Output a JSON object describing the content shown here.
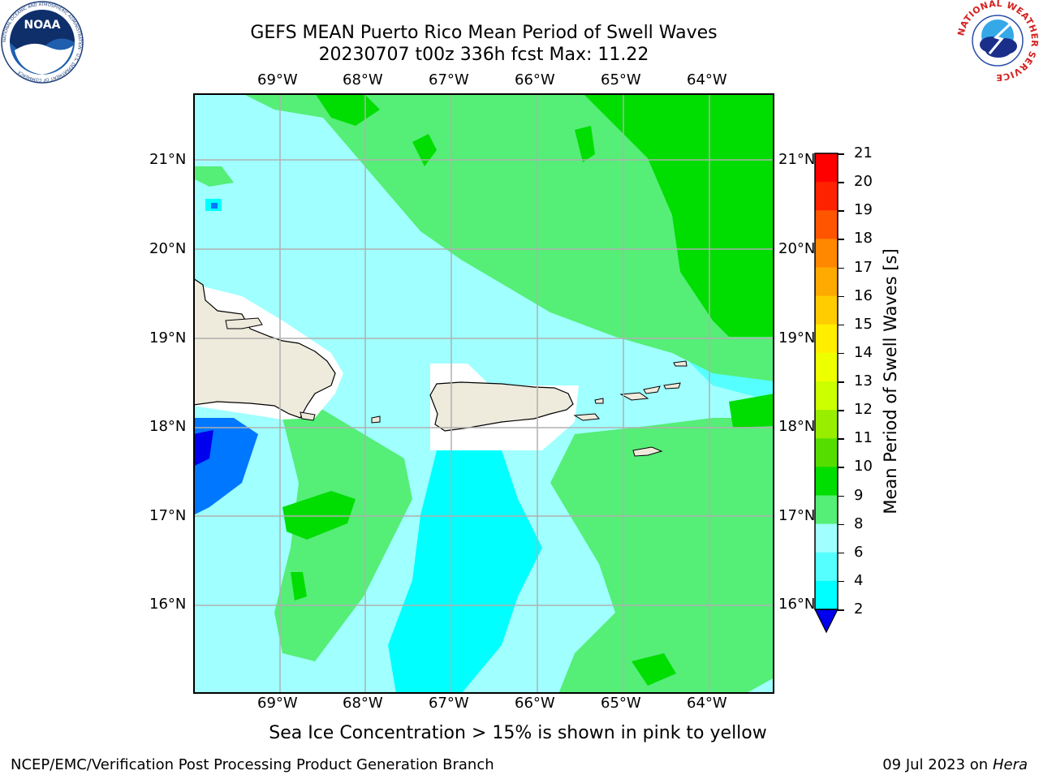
{
  "header": {
    "title_line1": "GEFS MEAN Puerto Rico Mean Period of Swell Waves",
    "title_line2": "20230707 t00z 336h fcst   Max: 11.22"
  },
  "logos": {
    "noaa_text": "NOAA",
    "noaa_ring_text": "NATIONAL OCEANIC AND ATMOSPHERIC ADMINISTRATION · U.S. DEPARTMENT OF COMMERCE",
    "nws_ring_text": "NATIONAL WEATHER SERVICE"
  },
  "map": {
    "lon_ticks": [
      "69°W",
      "68°W",
      "67°W",
      "66°W",
      "65°W",
      "64°W"
    ],
    "lat_ticks": [
      "21°N",
      "20°N",
      "19°N",
      "18°N",
      "17°N",
      "16°N"
    ],
    "colors": {
      "land": "#eeeadc",
      "coast": "#000000",
      "grid": "#b0b0b0"
    }
  },
  "colorbar": {
    "label": "Mean Period of Swell Waves [s]",
    "ticks": [
      "21",
      "20",
      "19",
      "18",
      "17",
      "16",
      "15",
      "14",
      "13",
      "12",
      "11",
      "10",
      "9",
      "8",
      "6",
      "4",
      "2"
    ],
    "colors": [
      "#ff0000",
      "#ff2200",
      "#ff5500",
      "#ff8800",
      "#ffaa00",
      "#ffcc00",
      "#ffee00",
      "#eeff00",
      "#ccff00",
      "#99ee00",
      "#55dd00",
      "#00dd00",
      "#55ee77",
      "#a0ffff",
      "#55ffff",
      "#00ffff",
      "#0077ff",
      "#0000ee"
    ]
  },
  "note": "Sea Ice Concentration > 15% is shown in pink to yellow",
  "footer": {
    "left": "NCEP/EMC/Verification Post Processing Product Generation Branch",
    "date": "09 Jul 2023 on ",
    "machine": "Hera"
  }
}
